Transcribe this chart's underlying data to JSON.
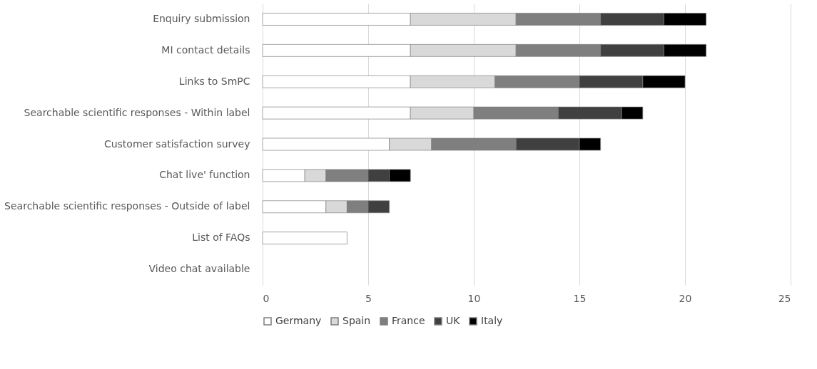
{
  "chart_data": {
    "type": "bar",
    "orientation": "horizontal",
    "stacked": true,
    "categories": [
      "Enquiry submission",
      "MI contact details",
      "Links to SmPC",
      "Searchable scientific responses - Within label",
      "Customer satisfaction survey",
      "Chat live' function",
      "Searchable scientific responses - Outside of label",
      "List of FAQs",
      "Video chat available"
    ],
    "series": [
      {
        "name": "Germany",
        "color": "#ffffff",
        "values": [
          7,
          7,
          7,
          7,
          6,
          2,
          3,
          4,
          0
        ]
      },
      {
        "name": "Spain",
        "color": "#d9d9d9",
        "values": [
          5,
          5,
          4,
          3,
          2,
          1,
          1,
          0,
          0
        ]
      },
      {
        "name": "France",
        "color": "#7f7f7f",
        "values": [
          4,
          4,
          4,
          4,
          4,
          2,
          1,
          0,
          0
        ]
      },
      {
        "name": "UK",
        "color": "#404040",
        "values": [
          3,
          3,
          3,
          3,
          3,
          1,
          1,
          0,
          0
        ]
      },
      {
        "name": "Italy",
        "color": "#000000",
        "values": [
          2,
          2,
          2,
          1,
          1,
          1,
          0,
          0,
          0
        ]
      }
    ],
    "xlim": [
      0,
      25
    ],
    "xticks": [
      0,
      5,
      10,
      15,
      20,
      25
    ],
    "grid": "x",
    "legend": "bottom"
  }
}
